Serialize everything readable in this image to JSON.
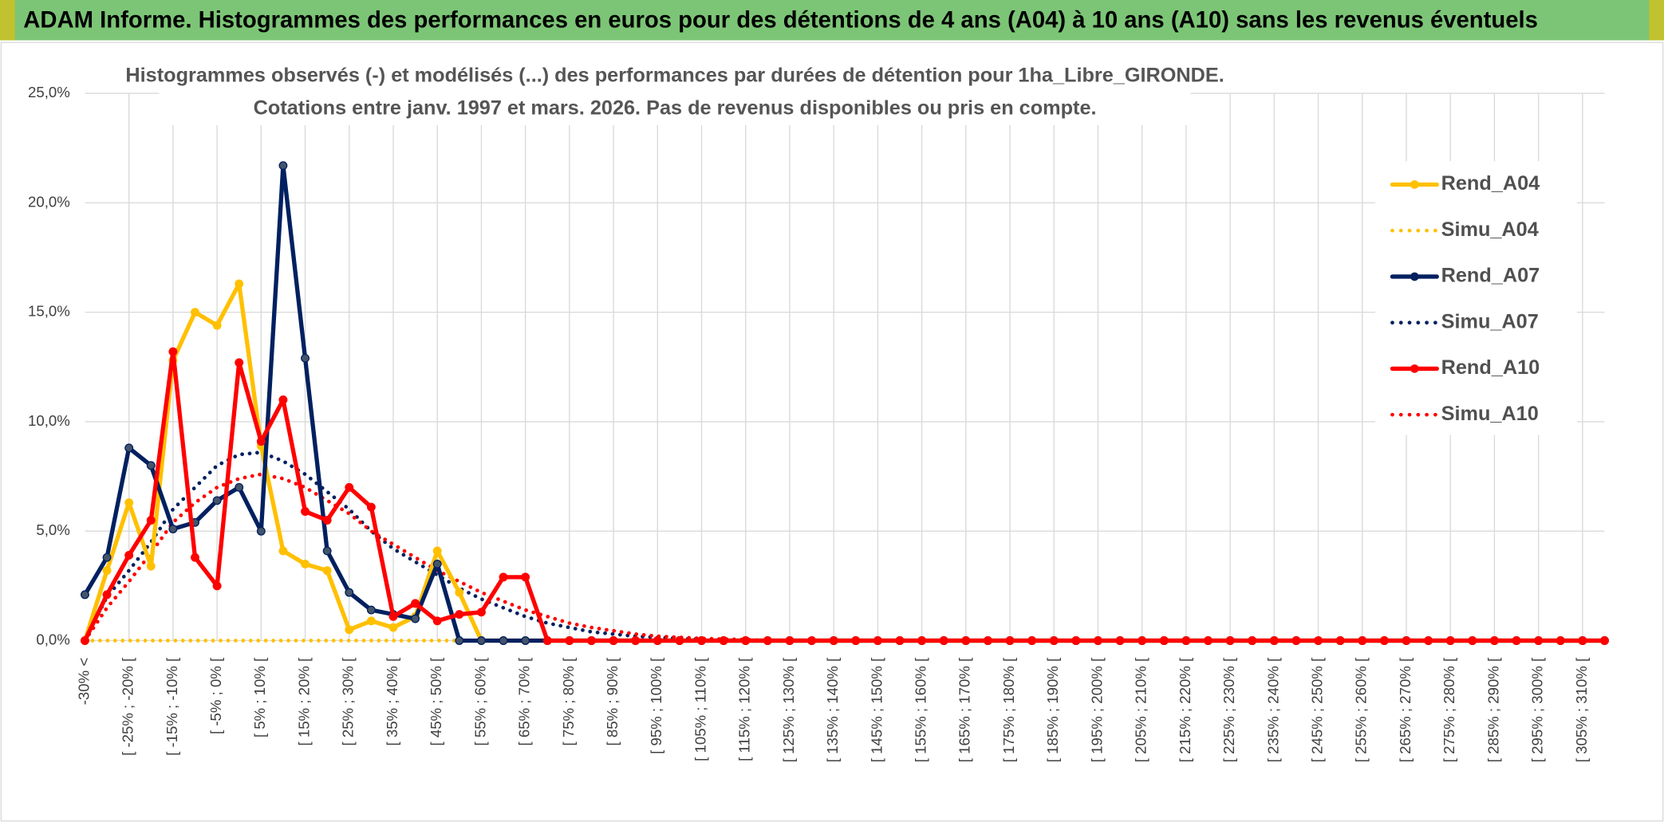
{
  "header": {
    "title": "ADAM Informe. Histogrammes des performances en euros pour des détentions de 4 ans (A04) à 10 ans (A10) sans les revenus éventuels"
  },
  "chart_data": {
    "type": "line",
    "title": [
      "Histogrammes observés (-) et modélisés (...) des performances par durées de détention pour 1ha_Libre_GIRONDE.",
      "Cotations entre janv. 1997 et mars. 2026. Pas de revenus disponibles ou pris en compte."
    ],
    "categories": [
      "-30% <",
      null,
      "[ -25% ; -20% [",
      null,
      "[ -15% ; -10% [",
      null,
      "[ -5% ; 0% [",
      null,
      "[ 5% ; 10% [",
      null,
      "[ 15% ; 20% [",
      null,
      "[ 25% ; 30% [",
      null,
      "[ 35% ; 40% [",
      null,
      "[ 45% ; 50% [",
      null,
      "[ 55% ; 60% [",
      null,
      "[ 65% ; 70% [",
      null,
      "[ 75% ; 80% [",
      null,
      "[ 85% ; 90% [",
      null,
      "[ 95% ; 100% [",
      null,
      "[ 105% ; 110% [",
      null,
      "[ 115% ; 120% [",
      null,
      "[ 125% ; 130% [",
      null,
      "[ 135% ; 140% [",
      null,
      "[ 145% ; 150% [",
      null,
      "[ 155% ; 160% [",
      null,
      "[ 165% ; 170% [",
      null,
      "[ 175% ; 180% [",
      null,
      "[ 185% ; 190% [",
      null,
      "[ 195% ; 200% [",
      null,
      "[ 205% ; 210% [",
      null,
      "[ 215% ; 220% [",
      null,
      "[ 225% ; 230% [",
      null,
      "[ 235% ; 240% [",
      null,
      "[ 245% ; 250% [",
      null,
      "[ 255% ; 260% [",
      null,
      "[ 265% ; 270% [",
      null,
      "[ 275% ; 280% [",
      null,
      "[ 285% ; 290% [",
      null,
      "[ 295% ; 300% [",
      null,
      "[ 305% ; 310% [",
      null
    ],
    "ylim": [
      0,
      25
    ],
    "yticks": [
      {
        "value": 0,
        "label": "0,0%"
      },
      {
        "value": 5,
        "label": "5,0%"
      },
      {
        "value": 10,
        "label": "10,0%"
      },
      {
        "value": 15,
        "label": "15,0%"
      },
      {
        "value": 20,
        "label": "20,0%"
      },
      {
        "value": 25,
        "label": "25,0%"
      }
    ],
    "grid": true,
    "legend": "right",
    "series": [
      {
        "name": "Rend_A04",
        "color": "#ffc000",
        "style": "solid",
        "markers": true,
        "values": [
          0,
          3.2,
          6.3,
          3.4,
          12.8,
          15.0,
          14.4,
          16.3,
          8.9,
          4.1,
          3.5,
          3.2,
          0.5,
          0.9,
          0.6,
          1.1,
          4.1,
          2.2,
          0,
          0,
          0,
          0,
          0,
          0,
          0,
          0,
          0,
          0,
          0,
          0,
          0,
          0,
          0,
          0,
          0,
          0,
          0,
          0,
          0,
          0,
          0,
          0,
          0,
          0,
          0,
          0,
          0,
          0,
          0,
          0,
          0,
          0,
          0,
          0,
          0,
          0,
          0,
          0,
          0,
          0,
          0,
          0,
          0,
          0,
          0,
          0,
          0,
          0,
          0,
          0
        ]
      },
      {
        "name": "Simu_A04",
        "color": "#ffc000",
        "style": "dotted",
        "markers": false,
        "values": [
          0,
          0,
          0,
          0,
          0,
          0,
          0,
          0,
          0,
          0,
          0,
          0,
          0,
          0,
          0,
          0,
          0,
          0,
          0,
          0,
          0,
          0,
          0,
          0,
          0,
          0,
          0,
          0,
          0,
          0,
          0,
          0,
          0,
          0,
          0,
          0,
          0,
          0,
          0,
          0,
          0,
          0,
          0,
          0,
          0,
          0,
          0,
          0,
          0,
          0,
          0,
          0,
          0,
          0,
          0,
          0,
          0,
          0,
          0,
          0,
          0,
          0,
          0,
          0,
          0,
          0,
          0,
          0,
          0,
          0
        ]
      },
      {
        "name": "Rend_A07",
        "color": "#002060",
        "style": "solid",
        "markers": true,
        "values": [
          2.1,
          3.8,
          8.8,
          8.0,
          5.1,
          5.4,
          6.4,
          7.0,
          5.0,
          21.7,
          12.9,
          4.1,
          2.2,
          1.4,
          1.2,
          1.0,
          3.5,
          0,
          0,
          0,
          0,
          0,
          0,
          0,
          0,
          0,
          0,
          0,
          0,
          0,
          0,
          0,
          0,
          0,
          0,
          0,
          0,
          0,
          0,
          0,
          0,
          0,
          0,
          0,
          0,
          0,
          0,
          0,
          0,
          0,
          0,
          0,
          0,
          0,
          0,
          0,
          0,
          0,
          0,
          0,
          0,
          0,
          0,
          0,
          0,
          0,
          0,
          0,
          0,
          0
        ]
      },
      {
        "name": "Simu_A07",
        "color": "#002060",
        "style": "dotted",
        "markers": false,
        "values": [
          0,
          2.0,
          3.2,
          4.5,
          6.0,
          7.0,
          8.0,
          8.5,
          8.6,
          8.2,
          7.6,
          6.8,
          6.0,
          5.0,
          4.2,
          3.6,
          3.0,
          2.4,
          1.9,
          1.5,
          1.1,
          0.8,
          0.6,
          0.4,
          0.3,
          0.2,
          0.15,
          0.1,
          0.05,
          0,
          0,
          0,
          0,
          0,
          0,
          0,
          0,
          0,
          0,
          0,
          0,
          0,
          0,
          0,
          0,
          0,
          0,
          0,
          0,
          0,
          0,
          0,
          0,
          0,
          0,
          0,
          0,
          0,
          0,
          0,
          0,
          0,
          0,
          0,
          0,
          0,
          0,
          0,
          0,
          0
        ]
      },
      {
        "name": "Rend_A10",
        "color": "#ff0000",
        "style": "solid",
        "markers": true,
        "values": [
          0,
          2.1,
          3.9,
          5.5,
          13.2,
          3.8,
          2.5,
          12.7,
          9.1,
          11.0,
          5.9,
          5.5,
          7.0,
          6.1,
          1.1,
          1.7,
          0.9,
          1.2,
          1.3,
          2.9,
          2.9,
          0,
          0,
          0,
          0,
          0,
          0,
          0,
          0,
          0,
          0,
          0,
          0,
          0,
          0,
          0,
          0,
          0,
          0,
          0,
          0,
          0,
          0,
          0,
          0,
          0,
          0,
          0,
          0,
          0,
          0,
          0,
          0,
          0,
          0,
          0,
          0,
          0,
          0,
          0,
          0,
          0,
          0,
          0,
          0,
          0,
          0,
          0,
          0,
          0
        ]
      },
      {
        "name": "Simu_A10",
        "color": "#ff0000",
        "style": "dotted",
        "markers": false,
        "values": [
          0,
          1.5,
          2.7,
          4.0,
          5.4,
          6.3,
          7.0,
          7.4,
          7.6,
          7.4,
          7.0,
          6.4,
          5.8,
          5.0,
          4.4,
          3.8,
          3.2,
          2.7,
          2.2,
          1.8,
          1.4,
          1.1,
          0.8,
          0.6,
          0.45,
          0.3,
          0.2,
          0.15,
          0.1,
          0.07,
          0.05,
          0,
          0,
          0,
          0,
          0,
          0,
          0,
          0,
          0,
          0,
          0,
          0,
          0,
          0,
          0,
          0,
          0,
          0,
          0,
          0,
          0,
          0,
          0,
          0,
          0,
          0,
          0,
          0,
          0,
          0,
          0,
          0,
          0,
          0,
          0,
          0,
          0,
          0,
          0
        ]
      }
    ]
  }
}
